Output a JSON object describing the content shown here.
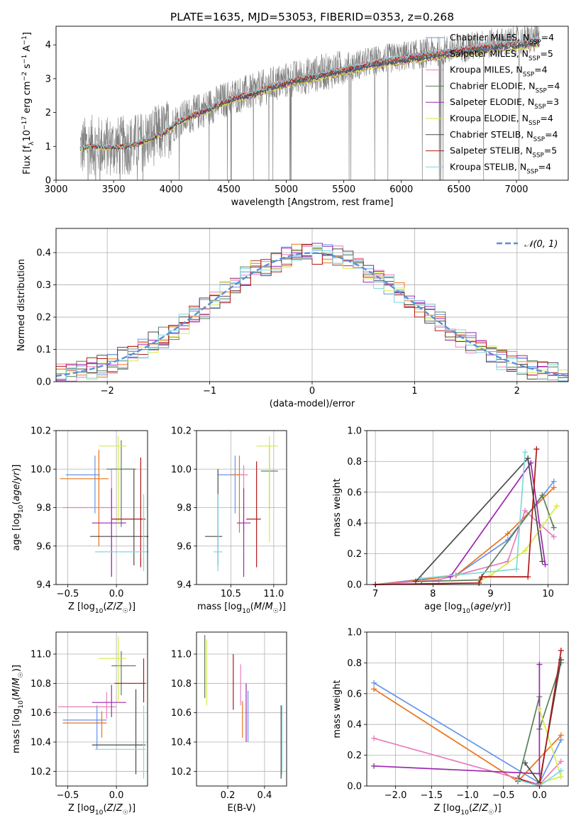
{
  "figure": {
    "title": "PLATE=1635, MJD=53053, FIBERID=0353, z=0.268"
  },
  "series_styles": [
    {
      "name": "Chabrier MILES",
      "nssp": "4",
      "color": "#6495ED"
    },
    {
      "name": "Salpeter MILES",
      "nssp": "5",
      "color": "#E8741C"
    },
    {
      "name": "Kroupa MILES",
      "nssp": "4",
      "color": "#E67EBE"
    },
    {
      "name": "Chabrier ELODIE",
      "nssp": "4",
      "color": "#5A7F5A"
    },
    {
      "name": "Salpeter ELODIE",
      "nssp": "3",
      "color": "#9B27B0"
    },
    {
      "name": "Kroupa ELODIE",
      "nssp": "4",
      "color": "#D7EA4A"
    },
    {
      "name": "Chabrier STELIB",
      "nssp": "4",
      "color": "#4A4A4A"
    },
    {
      "name": "Salpeter STELIB",
      "nssp": "5",
      "color": "#B01818"
    },
    {
      "name": "Kroupa STELIB",
      "nssp": "4",
      "color": "#7FD8DC"
    }
  ],
  "chart_data": [
    {
      "id": "spectrum",
      "type": "line",
      "xlabel": "wavelength [Angstrom, rest frame]",
      "ylabel": "Flux [f_λ10^-17 erg cm^-2 s^-1 A^-1]",
      "xlim": [
        3000,
        7450
      ],
      "ylim": [
        0,
        4.55
      ],
      "xticks": [
        3000,
        3500,
        4000,
        4500,
        5000,
        5500,
        6000,
        6500,
        7000
      ],
      "yticks": [
        0,
        1,
        2,
        3,
        4
      ],
      "grid": false,
      "legend": "upper right",
      "data_color": "#808080",
      "model_continuum": [
        [
          3210,
          0.95
        ],
        [
          3300,
          1.05
        ],
        [
          3400,
          1.0
        ],
        [
          3550,
          1.0
        ],
        [
          3650,
          1.05
        ],
        [
          3750,
          1.15
        ],
        [
          3850,
          1.3
        ],
        [
          3950,
          1.45
        ],
        [
          4050,
          1.75
        ],
        [
          4150,
          1.9
        ],
        [
          4250,
          2.05
        ],
        [
          4350,
          2.2
        ],
        [
          4450,
          2.35
        ],
        [
          4550,
          2.5
        ],
        [
          4700,
          2.6
        ],
        [
          4850,
          2.8
        ],
        [
          5000,
          2.95
        ],
        [
          5200,
          3.1
        ],
        [
          5400,
          3.25
        ],
        [
          5600,
          3.4
        ],
        [
          5800,
          3.55
        ],
        [
          6000,
          3.65
        ],
        [
          6200,
          3.75
        ],
        [
          6400,
          3.85
        ],
        [
          6600,
          3.95
        ],
        [
          6800,
          4.05
        ],
        [
          7000,
          4.1
        ],
        [
          7200,
          4.2
        ]
      ]
    },
    {
      "id": "residuals",
      "type": "step-histogram",
      "xlabel": "(data-model)/error",
      "ylabel": "Normed distribution",
      "xlim": [
        -2.5,
        2.5
      ],
      "ylim": [
        0,
        0.475
      ],
      "xticks": [
        -2,
        -1,
        0,
        1,
        2
      ],
      "yticks": [
        0.0,
        0.1,
        0.2,
        0.3,
        0.4
      ],
      "grid": true,
      "bin_width": 0.1,
      "legend": "upper right",
      "reference_curve": {
        "label": "𝒩(0, 1)",
        "color": "#5B8FD8"
      }
    },
    {
      "id": "age-vs-Z",
      "type": "errorbar",
      "xlabel": "Z [log10(Z/Z☉)]",
      "ylabel": "age [log10(age/yr)]",
      "xlim": [
        -0.62,
        0.32
      ],
      "ylim": [
        9.4,
        10.2
      ],
      "xticks": [
        -0.5,
        0.0
      ],
      "yticks": [
        9.4,
        9.6,
        9.8,
        10.0,
        10.2
      ],
      "grid": true,
      "points": [
        {
          "x": -0.22,
          "xerr": [
            0.3,
            0.05
          ],
          "y": 9.97,
          "yerr": [
            0.2,
            0.1
          ]
        },
        {
          "x": -0.18,
          "xerr": [
            0.4,
            0.1
          ],
          "y": 9.95,
          "yerr": [
            0.35,
            0.15
          ]
        },
        {
          "x": -0.05,
          "xerr": [
            0.5,
            0.05
          ],
          "y": 9.8,
          "yerr": [
            0.35,
            0.2
          ]
        },
        {
          "x": 0.05,
          "xerr": [
            0.15,
            0.15
          ],
          "y": 10.0,
          "yerr": [
            0.3,
            0.15
          ]
        },
        {
          "x": -0.05,
          "xerr": [
            0.2,
            0.15
          ],
          "y": 9.72,
          "yerr": [
            0.28,
            0.18
          ]
        },
        {
          "x": 0.02,
          "xerr": [
            0.2,
            0.08
          ],
          "y": 10.12,
          "yerr": [
            0.4,
            0.05
          ]
        },
        {
          "x": 0.18,
          "xerr": [
            0.45,
            0.15
          ],
          "y": 9.65,
          "yerr": [
            0.15,
            0.35
          ]
        },
        {
          "x": 0.25,
          "xerr": [
            0.3,
            0.05
          ],
          "y": 9.74,
          "yerr": [
            0.25,
            0.32
          ]
        },
        {
          "x": 0.28,
          "xerr": [
            0.5,
            0.05
          ],
          "y": 9.57,
          "yerr": [
            0.1,
            0.3
          ]
        }
      ]
    },
    {
      "id": "age-vs-mass",
      "type": "errorbar",
      "xlabel": "mass [log10(M/M☉)]",
      "ylabel": "",
      "xlim": [
        10.1,
        11.15
      ],
      "ylim": [
        9.4,
        10.2
      ],
      "xticks": [
        10.5,
        11.0
      ],
      "yticks": [
        9.4,
        9.6,
        9.8,
        10.0,
        10.2
      ],
      "grid": true,
      "points": [
        {
          "x": 10.55,
          "xerr": [
            0.2,
            0.05
          ],
          "y": 9.97,
          "yerr": [
            0.2,
            0.1
          ]
        },
        {
          "x": 10.6,
          "xerr": [
            0.1,
            0.05
          ],
          "y": 9.97,
          "yerr": [
            0.3,
            0.1
          ]
        },
        {
          "x": 10.65,
          "xerr": [
            0.05,
            0.05
          ],
          "y": 9.97,
          "yerr": [
            0.3,
            0.05
          ]
        },
        {
          "x": 10.95,
          "xerr": [
            0.1,
            0.1
          ],
          "y": 9.99,
          "yerr": [
            0.2,
            0.13
          ]
        },
        {
          "x": 10.65,
          "xerr": [
            0.08,
            0.08
          ],
          "y": 9.72,
          "yerr": [
            0.28,
            0.18
          ]
        },
        {
          "x": 10.95,
          "xerr": [
            0.15,
            0.1
          ],
          "y": 10.12,
          "yerr": [
            0.5,
            0.05
          ]
        },
        {
          "x": 10.35,
          "xerr": [
            0.15,
            0.05
          ],
          "y": 9.65,
          "yerr": [
            0.15,
            0.35
          ]
        },
        {
          "x": 10.8,
          "xerr": [
            0.12,
            0.05
          ],
          "y": 9.74,
          "yerr": [
            0.25,
            0.3
          ]
        },
        {
          "x": 10.35,
          "xerr": [
            0.05,
            0.05
          ],
          "y": 9.57,
          "yerr": [
            0.1,
            0.3
          ]
        }
      ]
    },
    {
      "id": "massweight-vs-age",
      "type": "line",
      "xlabel": "age [log10(age/yr)]",
      "ylabel": "mass weight",
      "xlim": [
        6.85,
        10.35
      ],
      "ylim": [
        0,
        1.0
      ],
      "xticks": [
        7,
        8,
        9,
        10
      ],
      "yticks": [
        0.0,
        0.2,
        0.4,
        0.6,
        0.8,
        1.0
      ],
      "grid": true,
      "series": [
        {
          "points": [
            [
              7.0,
              0.0
            ],
            [
              8.4,
              0.06
            ],
            [
              9.3,
              0.29
            ],
            [
              10.1,
              0.67
            ]
          ]
        },
        {
          "points": [
            [
              7.0,
              0.0
            ],
            [
              7.8,
              0.03
            ],
            [
              8.4,
              0.06
            ],
            [
              9.3,
              0.33
            ],
            [
              10.1,
              0.63
            ]
          ]
        },
        {
          "points": [
            [
              7.0,
              0.0
            ],
            [
              8.1,
              0.03
            ],
            [
              9.3,
              0.15
            ],
            [
              9.6,
              0.48
            ],
            [
              10.1,
              0.31
            ]
          ]
        },
        {
          "points": [
            [
              7.8,
              0.02
            ],
            [
              8.8,
              0.03
            ],
            [
              9.9,
              0.58
            ],
            [
              10.1,
              0.37
            ]
          ]
        },
        {
          "points": [
            [
              8.3,
              0.05
            ],
            [
              9.7,
              0.79
            ],
            [
              9.95,
              0.13
            ]
          ]
        },
        {
          "points": [
            [
              8.8,
              0.02
            ],
            [
              9.0,
              0.06
            ],
            [
              9.6,
              0.22
            ],
            [
              10.15,
              0.51
            ]
          ]
        },
        {
          "points": [
            [
              7.7,
              0.02
            ],
            [
              9.65,
              0.82
            ],
            [
              9.9,
              0.15
            ]
          ]
        },
        {
          "points": [
            [
              7.0,
              0.0
            ],
            [
              8.8,
              0.01
            ],
            [
              8.85,
              0.05
            ],
            [
              9.65,
              0.05
            ],
            [
              9.8,
              0.88
            ]
          ]
        },
        {
          "points": [
            [
              7.8,
              0.04
            ],
            [
              9.45,
              0.1
            ],
            [
              9.6,
              0.86
            ]
          ]
        }
      ]
    },
    {
      "id": "mass-vs-Z",
      "type": "errorbar",
      "xlabel": "Z [log10(Z/Z☉)]",
      "ylabel": "mass [log10(M/M☉)]",
      "xlim": [
        -0.62,
        0.32
      ],
      "ylim": [
        10.1,
        11.15
      ],
      "xticks": [
        -0.5,
        0.0
      ],
      "yticks": [
        10.2,
        10.4,
        10.6,
        10.8,
        11.0
      ],
      "grid": true,
      "points": [
        {
          "x": -0.2,
          "xerr": [
            0.35,
            0.1
          ],
          "y": 10.55,
          "yerr": [
            0.2,
            0.1
          ]
        },
        {
          "x": -0.15,
          "xerr": [
            0.4,
            0.05
          ],
          "y": 10.53,
          "yerr": [
            0.1,
            0.08
          ]
        },
        {
          "x": -0.1,
          "xerr": [
            0.5,
            0.1
          ],
          "y": 10.64,
          "yerr": [
            0.08,
            0.1
          ]
        },
        {
          "x": 0.05,
          "xerr": [
            0.1,
            0.15
          ],
          "y": 10.92,
          "yerr": [
            0.2,
            0.1
          ]
        },
        {
          "x": -0.05,
          "xerr": [
            0.2,
            0.15
          ],
          "y": 10.67,
          "yerr": [
            0.1,
            0.12
          ]
        },
        {
          "x": 0.02,
          "xerr": [
            0.2,
            0.08
          ],
          "y": 10.97,
          "yerr": [
            0.3,
            0.15
          ]
        },
        {
          "x": 0.2,
          "xerr": [
            0.45,
            0.1
          ],
          "y": 10.38,
          "yerr": [
            0.2,
            0.38
          ]
        },
        {
          "x": 0.28,
          "xerr": [
            0.3,
            0.02
          ],
          "y": 10.8,
          "yerr": [
            0.13,
            0.17
          ]
        },
        {
          "x": 0.28,
          "xerr": [
            0.5,
            0.02
          ],
          "y": 10.35,
          "yerr": [
            0.2,
            0.3
          ]
        }
      ]
    },
    {
      "id": "mass-vs-EBV",
      "type": "errorbar",
      "xlabel": "E(B-V)",
      "ylabel": "",
      "xlim": [
        0.03,
        0.52
      ],
      "ylim": [
        10.1,
        11.15
      ],
      "xticks": [
        0.2,
        0.4
      ],
      "yticks": [
        10.2,
        10.4,
        10.6,
        10.8,
        11.0
      ],
      "grid": true,
      "points": [
        {
          "x": 0.31,
          "y": 10.55,
          "yerr": [
            0.15,
            0.2
          ]
        },
        {
          "x": 0.28,
          "y": 10.53,
          "yerr": [
            0.1,
            0.15
          ]
        },
        {
          "x": 0.27,
          "y": 10.8,
          "yerr": [
            0.15,
            0.13
          ]
        },
        {
          "x": 0.075,
          "y": 10.95,
          "yerr": [
            0.25,
            0.18
          ]
        },
        {
          "x": 0.3,
          "y": 10.6,
          "yerr": [
            0.2,
            0.2
          ]
        },
        {
          "x": 0.085,
          "y": 10.9,
          "yerr": [
            0.25,
            0.2
          ]
        },
        {
          "x": 0.49,
          "y": 10.4,
          "yerr": [
            0.25,
            0.25
          ]
        },
        {
          "x": 0.23,
          "y": 10.8,
          "yerr": [
            0.18,
            0.2
          ]
        },
        {
          "x": 0.495,
          "y": 10.4,
          "yerr": [
            0.22,
            0.25
          ]
        }
      ]
    },
    {
      "id": "massweight-vs-Z",
      "type": "line",
      "xlabel": "Z [log10(Z/Z☉)]",
      "ylabel": "mass weight",
      "xlim": [
        -2.4,
        0.4
      ],
      "ylim": [
        0,
        1.0
      ],
      "xticks": [
        -2.0,
        -1.5,
        -1.0,
        -0.5,
        0.0
      ],
      "yticks": [
        0.0,
        0.2,
        0.4,
        0.6,
        0.8,
        1.0
      ],
      "grid": true,
      "series": [
        {
          "points": [
            [
              -2.3,
              0.67
            ],
            [
              0.0,
              0.02
            ],
            [
              0.3,
              0.3
            ]
          ]
        },
        {
          "points": [
            [
              -2.3,
              0.63
            ],
            [
              -0.3,
              0.03
            ],
            [
              0.3,
              0.33
            ]
          ]
        },
        {
          "points": [
            [
              -2.3,
              0.31
            ],
            [
              0.0,
              0.01
            ],
            [
              0.3,
              0.16
            ]
          ]
        },
        {
          "points": [
            [
              -0.3,
              0.03
            ],
            [
              0.0,
              0.58
            ],
            [
              0.0,
              0.37
            ],
            [
              0.3,
              0.8
            ]
          ]
        },
        {
          "points": [
            [
              -2.3,
              0.13
            ],
            [
              0.0,
              0.08
            ],
            [
              0.0,
              0.79
            ]
          ]
        },
        {
          "points": [
            [
              0.0,
              0.5
            ],
            [
              0.3,
              0.06
            ],
            [
              0.0,
              0.02
            ]
          ]
        },
        {
          "points": [
            [
              -0.2,
              0.15
            ],
            [
              0.0,
              0.02
            ],
            [
              0.3,
              0.82
            ]
          ]
        },
        {
          "points": [
            [
              -0.3,
              0.05
            ],
            [
              0.0,
              0.0
            ],
            [
              0.3,
              0.88
            ]
          ]
        },
        {
          "points": [
            [
              -0.3,
              0.04
            ],
            [
              0.0,
              0.0
            ],
            [
              0.3,
              0.1
            ]
          ]
        }
      ]
    }
  ]
}
